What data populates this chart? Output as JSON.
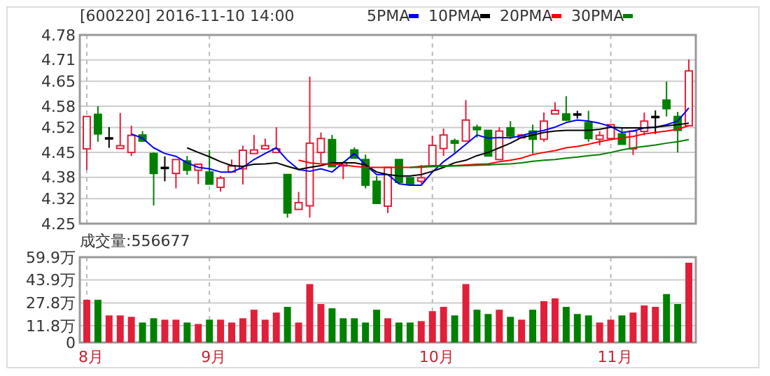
{
  "chart_data": [
    {
      "type": "candlestick",
      "title": "[600220] 2016-11-10 14:00",
      "categories": [
        null,
        null,
        null,
        null,
        null,
        null,
        null,
        null,
        null,
        null,
        null,
        null,
        null,
        null,
        null,
        null,
        null,
        null,
        null,
        null,
        null,
        null,
        null,
        null,
        null,
        null,
        null,
        null,
        null,
        null,
        null,
        null,
        null,
        null,
        null,
        null,
        null,
        null,
        null,
        null,
        null,
        null,
        null,
        null,
        null,
        null,
        null,
        null,
        null,
        null,
        null,
        null,
        null,
        null,
        null
      ],
      "ohlc": [
        [
          4.46,
          4.551,
          4.401,
          4.551
        ],
        [
          4.557,
          4.58,
          4.48,
          4.502
        ],
        [
          4.491,
          4.521,
          4.463,
          4.491
        ],
        [
          4.461,
          4.561,
          4.461,
          4.469
        ],
        [
          4.45,
          4.525,
          4.44,
          4.498
        ],
        [
          4.499,
          4.51,
          4.48,
          4.482
        ],
        [
          4.447,
          4.45,
          4.301,
          4.391
        ],
        [
          4.408,
          4.439,
          4.369,
          4.408
        ],
        [
          4.391,
          4.43,
          4.349,
          4.43
        ],
        [
          4.426,
          4.44,
          4.387,
          4.4
        ],
        [
          4.4,
          4.417,
          4.361,
          4.417
        ],
        [
          4.395,
          4.457,
          4.361,
          4.361
        ],
        [
          4.352,
          4.384,
          4.34,
          4.378
        ],
        [
          4.395,
          4.43,
          4.395,
          4.412
        ],
        [
          4.404,
          4.469,
          4.36,
          4.456
        ],
        [
          4.447,
          4.499,
          4.447,
          4.457
        ],
        [
          4.46,
          4.489,
          4.46,
          4.469
        ],
        [
          4.45,
          4.521,
          4.45,
          4.46
        ],
        [
          4.388,
          4.388,
          4.267,
          4.28
        ],
        [
          4.29,
          4.339,
          4.29,
          4.309
        ],
        [
          4.3,
          4.663,
          4.267,
          4.476
        ],
        [
          4.45,
          4.506,
          4.421,
          4.489
        ],
        [
          4.486,
          4.499,
          4.41,
          4.41
        ],
        [
          4.412,
          4.425,
          4.375,
          4.421
        ],
        [
          4.457,
          4.464,
          4.434,
          4.434
        ],
        [
          4.43,
          4.444,
          4.349,
          4.358
        ],
        [
          4.369,
          4.384,
          4.307,
          4.307
        ],
        [
          4.299,
          4.408,
          4.28,
          4.408
        ],
        [
          4.43,
          4.43,
          4.362,
          4.366
        ],
        [
          4.379,
          4.379,
          4.362,
          4.362
        ],
        [
          4.369,
          4.415,
          4.362,
          4.379
        ],
        [
          4.41,
          4.497,
          4.41,
          4.47
        ],
        [
          4.461,
          4.517,
          4.44,
          4.499
        ],
        [
          4.483,
          4.489,
          4.45,
          4.476
        ],
        [
          4.482,
          4.597,
          4.482,
          4.541
        ],
        [
          4.521,
          4.528,
          4.492,
          4.514
        ],
        [
          4.512,
          4.512,
          4.44,
          4.44
        ],
        [
          4.43,
          4.521,
          4.43,
          4.51
        ],
        [
          4.519,
          4.538,
          4.488,
          4.496
        ],
        [
          4.491,
          4.502,
          4.491,
          4.499
        ],
        [
          4.51,
          4.528,
          4.447,
          4.487
        ],
        [
          4.487,
          4.562,
          4.48,
          4.538
        ],
        [
          4.558,
          4.591,
          4.558,
          4.568
        ],
        [
          4.558,
          4.608,
          4.538,
          4.541
        ],
        [
          4.558,
          4.567,
          4.545,
          4.558
        ],
        [
          4.534,
          4.567,
          4.48,
          4.489
        ],
        [
          4.487,
          4.51,
          4.47,
          4.498
        ],
        [
          4.489,
          4.528,
          4.489,
          4.528
        ],
        [
          4.502,
          4.519,
          4.473,
          4.473
        ],
        [
          4.46,
          4.51,
          4.443,
          4.51
        ],
        [
          4.509,
          4.562,
          4.498,
          4.538
        ],
        [
          4.551,
          4.568,
          4.502,
          4.551
        ],
        [
          4.597,
          4.649,
          4.551,
          4.573
        ],
        [
          4.551,
          4.564,
          4.45,
          4.512
        ],
        [
          4.525,
          4.711,
          4.525,
          4.679
        ]
      ],
      "series": [
        {
          "name": "5PMA",
          "type": "line",
          "color": "#0000ff",
          "values": [
            null,
            null,
            null,
            null,
            4.502,
            4.49,
            4.463,
            4.447,
            4.439,
            4.421,
            4.408,
            4.404,
            4.395,
            4.395,
            4.408,
            4.43,
            4.447,
            4.463,
            4.428,
            4.402,
            4.397,
            4.404,
            4.395,
            4.421,
            4.447,
            4.415,
            4.388,
            4.388,
            4.362,
            4.358,
            4.358,
            4.395,
            4.424,
            4.447,
            4.473,
            4.499,
            4.49,
            4.492,
            4.491,
            4.497,
            4.506,
            4.512,
            4.521,
            4.534,
            4.541,
            4.538,
            4.532,
            4.523,
            4.506,
            4.51,
            4.519,
            4.521,
            4.528,
            4.538,
            4.575
          ]
        },
        {
          "name": "10PMA",
          "type": "line",
          "color": "#000000",
          "values": [
            null,
            null,
            null,
            null,
            null,
            null,
            null,
            null,
            null,
            4.463,
            4.45,
            4.438,
            4.424,
            4.413,
            4.411,
            4.417,
            4.418,
            4.421,
            4.411,
            4.402,
            4.408,
            4.413,
            4.421,
            4.421,
            4.421,
            4.415,
            4.395,
            4.388,
            4.384,
            4.384,
            4.388,
            4.397,
            4.408,
            4.421,
            4.428,
            4.441,
            4.45,
            4.463,
            4.476,
            4.492,
            4.499,
            4.506,
            4.51,
            4.512,
            4.512,
            4.512,
            4.515,
            4.521,
            4.519,
            4.519,
            4.519,
            4.521,
            4.525,
            4.528,
            4.532
          ]
        },
        {
          "name": "20PMA",
          "type": "line",
          "color": "#ff0000",
          "values": [
            null,
            null,
            null,
            null,
            null,
            null,
            null,
            null,
            null,
            null,
            null,
            null,
            null,
            null,
            null,
            null,
            null,
            null,
            null,
            4.428,
            4.421,
            4.418,
            4.418,
            4.415,
            4.411,
            4.408,
            4.408,
            4.408,
            4.408,
            4.408,
            4.411,
            4.413,
            4.413,
            4.413,
            4.415,
            4.417,
            4.418,
            4.424,
            4.428,
            4.434,
            4.444,
            4.45,
            4.455,
            4.463,
            4.467,
            4.473,
            4.48,
            4.486,
            4.491,
            4.495,
            4.502,
            4.506,
            4.51,
            4.515,
            4.525
          ]
        },
        {
          "name": "30PMA",
          "type": "line",
          "color": "#008000",
          "values": [
            null,
            null,
            null,
            null,
            null,
            null,
            null,
            null,
            null,
            null,
            null,
            null,
            null,
            null,
            null,
            null,
            null,
            null,
            null,
            null,
            null,
            null,
            null,
            null,
            null,
            null,
            null,
            null,
            null,
            4.408,
            4.408,
            4.411,
            4.411,
            4.412,
            4.413,
            4.414,
            4.415,
            4.417,
            4.418,
            4.421,
            4.425,
            4.428,
            4.43,
            4.434,
            4.437,
            4.441,
            4.444,
            4.45,
            4.457,
            4.463,
            4.467,
            4.471,
            4.476,
            4.48,
            4.486
          ]
        }
      ],
      "ylim": [
        4.25,
        4.78
      ],
      "yticks": [
        4.25,
        4.32,
        4.38,
        4.45,
        4.52,
        4.58,
        4.65,
        4.71,
        4.78
      ],
      "grid": true,
      "legend": "top",
      "tick_labels": "y"
    },
    {
      "type": "bar",
      "title": "成交量:556677",
      "categories": [
        "8月",
        null,
        null,
        null,
        null,
        null,
        null,
        null,
        null,
        null,
        null,
        "9月",
        null,
        null,
        null,
        null,
        null,
        null,
        null,
        null,
        null,
        null,
        null,
        null,
        null,
        null,
        null,
        null,
        null,
        null,
        null,
        "10月",
        null,
        null,
        null,
        null,
        null,
        null,
        null,
        null,
        null,
        null,
        null,
        null,
        null,
        null,
        null,
        "11月",
        null,
        null,
        null,
        null,
        null,
        null,
        null
      ],
      "values": [
        30,
        30,
        19,
        19,
        18,
        14,
        17,
        16,
        16,
        14,
        13,
        16,
        16,
        14,
        17,
        23,
        16,
        21,
        25,
        14,
        41,
        27,
        24,
        17,
        17,
        14,
        23,
        17,
        14,
        14,
        15,
        22,
        25,
        19,
        41,
        23,
        20,
        23,
        18,
        16,
        23,
        29,
        31,
        25,
        20,
        19,
        14,
        16,
        19,
        21,
        26,
        25,
        34,
        27,
        56
      ],
      "colors": [
        "#e0203a",
        "#008000",
        "#e0203a",
        "#e0203a",
        "#e0203a",
        "#008000",
        "#008000",
        "#e0203a",
        "#e0203a",
        "#008000",
        "#e0203a",
        "#008000",
        "#e0203a",
        "#e0203a",
        "#e0203a",
        "#e0203a",
        "#e0203a",
        "#e0203a",
        "#008000",
        "#e0203a",
        "#e0203a",
        "#e0203a",
        "#008000",
        "#008000",
        "#008000",
        "#008000",
        "#008000",
        "#e0203a",
        "#008000",
        "#008000",
        "#e0203a",
        "#e0203a",
        "#e0203a",
        "#008000",
        "#e0203a",
        "#008000",
        "#008000",
        "#e0203a",
        "#008000",
        "#e0203a",
        "#008000",
        "#e0203a",
        "#e0203a",
        "#008000",
        "#008000",
        "#008000",
        "#e0203a",
        "#e0203a",
        "#008000",
        "#e0203a",
        "#e0203a",
        "#e0203a",
        "#008000",
        "#008000",
        "#e0203a"
      ],
      "ylim": [
        0,
        59.9
      ],
      "yticks": [
        0,
        {
          "value": 11.8,
          "label": "11.8万"
        },
        {
          "value": 27.8,
          "label": "27.8万"
        },
        {
          "value": 43.9,
          "label": "43.9万"
        },
        {
          "value": 59.9,
          "label": "59.9万"
        }
      ],
      "grid": true
    }
  ]
}
